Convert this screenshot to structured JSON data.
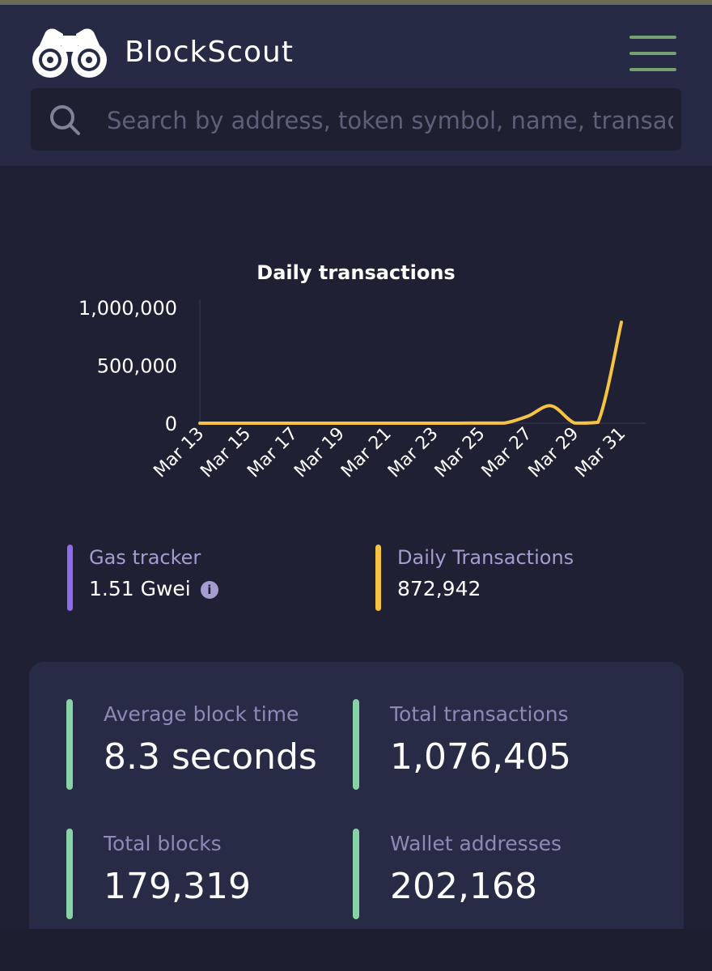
{
  "header": {
    "brand": "BlockScout",
    "logo_icon": "binoculars-icon",
    "menu_icon": "hamburger-menu-icon",
    "search": {
      "icon": "search-icon",
      "placeholder": "Search by address, token symbol, name, transaction hash, or block number"
    }
  },
  "chart_data": {
    "type": "line",
    "title": "Daily transactions",
    "xlabel": "",
    "ylabel": "",
    "x": [
      "Mar 13",
      "Mar 14",
      "Mar 15",
      "Mar 16",
      "Mar 17",
      "Mar 18",
      "Mar 19",
      "Mar 20",
      "Mar 21",
      "Mar 22",
      "Mar 23",
      "Mar 24",
      "Mar 25",
      "Mar 26",
      "Mar 27",
      "Mar 28",
      "Mar 29",
      "Mar 30",
      "Mar 31"
    ],
    "x_tick_labels": [
      "Mar 13",
      "Mar 15",
      "Mar 17",
      "Mar 19",
      "Mar 21",
      "Mar 23",
      "Mar 25",
      "Mar 27",
      "Mar 29",
      "Mar 31"
    ],
    "series": [
      {
        "values": [
          0,
          0,
          0,
          0,
          0,
          0,
          0,
          0,
          0,
          0,
          0,
          0,
          1000,
          1000,
          60000,
          150000,
          2000,
          8000,
          872942
        ]
      }
    ],
    "ylim": [
      0,
      1000000
    ],
    "y_ticks": [
      0,
      500000,
      1000000
    ],
    "y_tick_labels": [
      "0",
      "500,000",
      "1,000,000"
    ],
    "grid": false,
    "line_color": "#f6c343"
  },
  "gas": {
    "label": "Gas tracker",
    "value": "1.51 Gwei",
    "info_icon": "info-icon",
    "color": "#8d6cf0"
  },
  "daily_tx": {
    "label": "Daily Transactions",
    "value": "872,942",
    "color": "#f6c343"
  },
  "stats": [
    {
      "label": "Average block time",
      "value": "8.3 seconds"
    },
    {
      "label": "Total transactions",
      "value": "1,076,405"
    },
    {
      "label": "Total blocks",
      "value": "179,319"
    },
    {
      "label": "Wallet addresses",
      "value": "202,168"
    }
  ],
  "stat_accent": "#86d3a5"
}
